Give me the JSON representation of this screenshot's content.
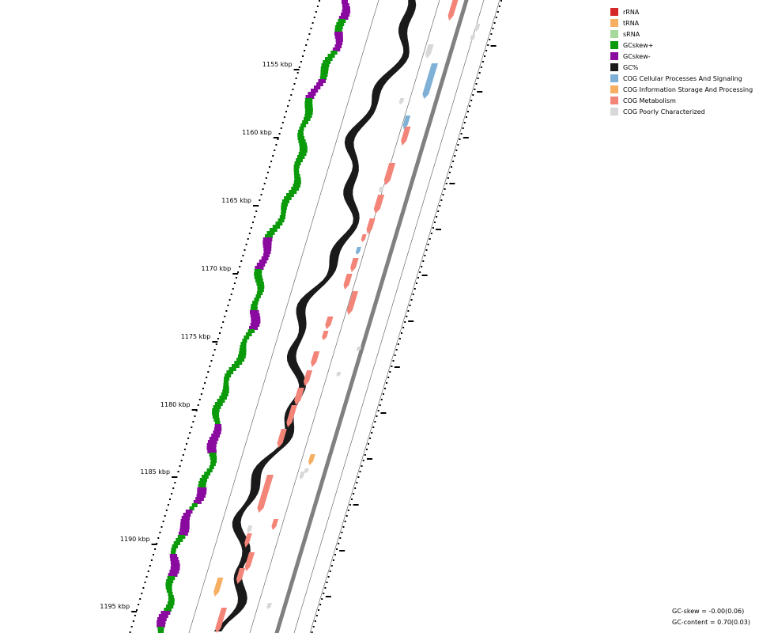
{
  "legend": {
    "items": [
      {
        "label": "rRNA",
        "color": "#d62728"
      },
      {
        "label": "tRNA",
        "color": "#f6ae63"
      },
      {
        "label": "sRNA",
        "color": "#a6d89b"
      },
      {
        "label": "GCskew+",
        "color": "#0a9a0a"
      },
      {
        "label": "GCskew-",
        "color": "#8a0aa0"
      },
      {
        "label": "GC%",
        "color": "#1a1a1a"
      },
      {
        "label": "COG Cellular Processes And Signaling",
        "color": "#7fb0d6"
      },
      {
        "label": "COG Information Storage And Processing",
        "color": "#f6ae63"
      },
      {
        "label": "COG Metabolism",
        "color": "#f38478"
      },
      {
        "label": "COG Poorly Characterized",
        "color": "#d8d8d8"
      }
    ]
  },
  "axis": {
    "ticks": [
      "1155 kbp",
      "1160 kbp",
      "1165 kbp",
      "1170 kbp",
      "1175 kbp",
      "1180 kbp",
      "1185 kbp",
      "1190 kbp",
      "1195 kbp"
    ]
  },
  "stats": {
    "gc_skew": "GC-skew = -0.00(0.06)",
    "gc_content": "GC-content = 0.70(0.03)"
  },
  "colors": {
    "gc_content": "#1a1a1a",
    "skew_pos": "#0a9a0a",
    "skew_neg": "#8a0aa0",
    "cog_metabolism": "#f38478",
    "cog_cellular": "#7fb0d6",
    "cog_info": "#f6ae63",
    "cog_poor": "#d8d8d8",
    "backbone": "#808080",
    "guide": "#555555"
  },
  "icons": [
    "legend-swatch",
    "feature-arrow"
  ]
}
